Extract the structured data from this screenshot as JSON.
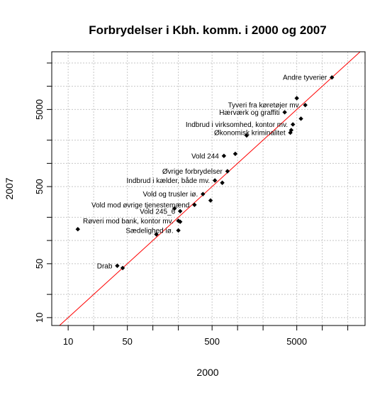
{
  "chart_data": {
    "type": "scatter",
    "title": "Forbrydelser i Kbh. komm. i 2000 og 2007",
    "xlabel": "2000",
    "ylabel": "2007",
    "x_scale": "log",
    "y_scale": "log",
    "xlim": [
      6.4,
      32000
    ],
    "ylim": [
      7.9,
      28000
    ],
    "x_ticks": [
      10,
      50,
      500,
      5000
    ],
    "y_ticks": [
      10,
      50,
      500,
      5000
    ],
    "grid": true,
    "reference_line": {
      "type": "y=x",
      "color": "#ff0000"
    },
    "point_color": "#000000",
    "points": [
      {
        "label": "Andre tyverier",
        "x": 13000,
        "y": 13000
      },
      {
        "label": "",
        "x": 5000,
        "y": 7000
      },
      {
        "label": "Tyveri fra køretøjer mv.",
        "x": 6300,
        "y": 5700
      },
      {
        "label": "Hærværk og graffiti",
        "x": 3600,
        "y": 4600
      },
      {
        "label": "",
        "x": 5600,
        "y": 3800
      },
      {
        "label": "Indbrud i virksomhed, kontor mv.",
        "x": 4500,
        "y": 3200
      },
      {
        "label": "",
        "x": 4300,
        "y": 2700
      },
      {
        "label": "Økonomisk kriminalitet",
        "x": 4200,
        "y": 2500
      },
      {
        "label": "",
        "x": 1280,
        "y": 2300
      },
      {
        "label": "",
        "x": 940,
        "y": 1330
      },
      {
        "label": "Vold 244",
        "x": 690,
        "y": 1250
      },
      {
        "label": "Øvrige forbrydelser",
        "x": 760,
        "y": 790
      },
      {
        "label": "Indbrud i kælder, både mv.",
        "x": 540,
        "y": 600
      },
      {
        "label": "",
        "x": 660,
        "y": 560
      },
      {
        "label": "Vold og trusler iø.",
        "x": 390,
        "y": 400
      },
      {
        "label": "",
        "x": 480,
        "y": 330
      },
      {
        "label": "Vold mod øvrige tjenestemænd",
        "x": 310,
        "y": 290
      },
      {
        "label": "",
        "x": 180,
        "y": 260
      },
      {
        "label": "Vold 245_6",
        "x": 210,
        "y": 240
      },
      {
        "label": "Røveri mod bank, kontor mv.",
        "x": 200,
        "y": 180
      },
      {
        "label": "",
        "x": 210,
        "y": 175
      },
      {
        "label": "Sædelighed iø.",
        "x": 200,
        "y": 135
      },
      {
        "label": "",
        "x": 110,
        "y": 120
      },
      {
        "label": "",
        "x": 13,
        "y": 140
      },
      {
        "label": "Drab",
        "x": 38,
        "y": 47
      },
      {
        "label": "",
        "x": 44,
        "y": 44
      }
    ]
  }
}
